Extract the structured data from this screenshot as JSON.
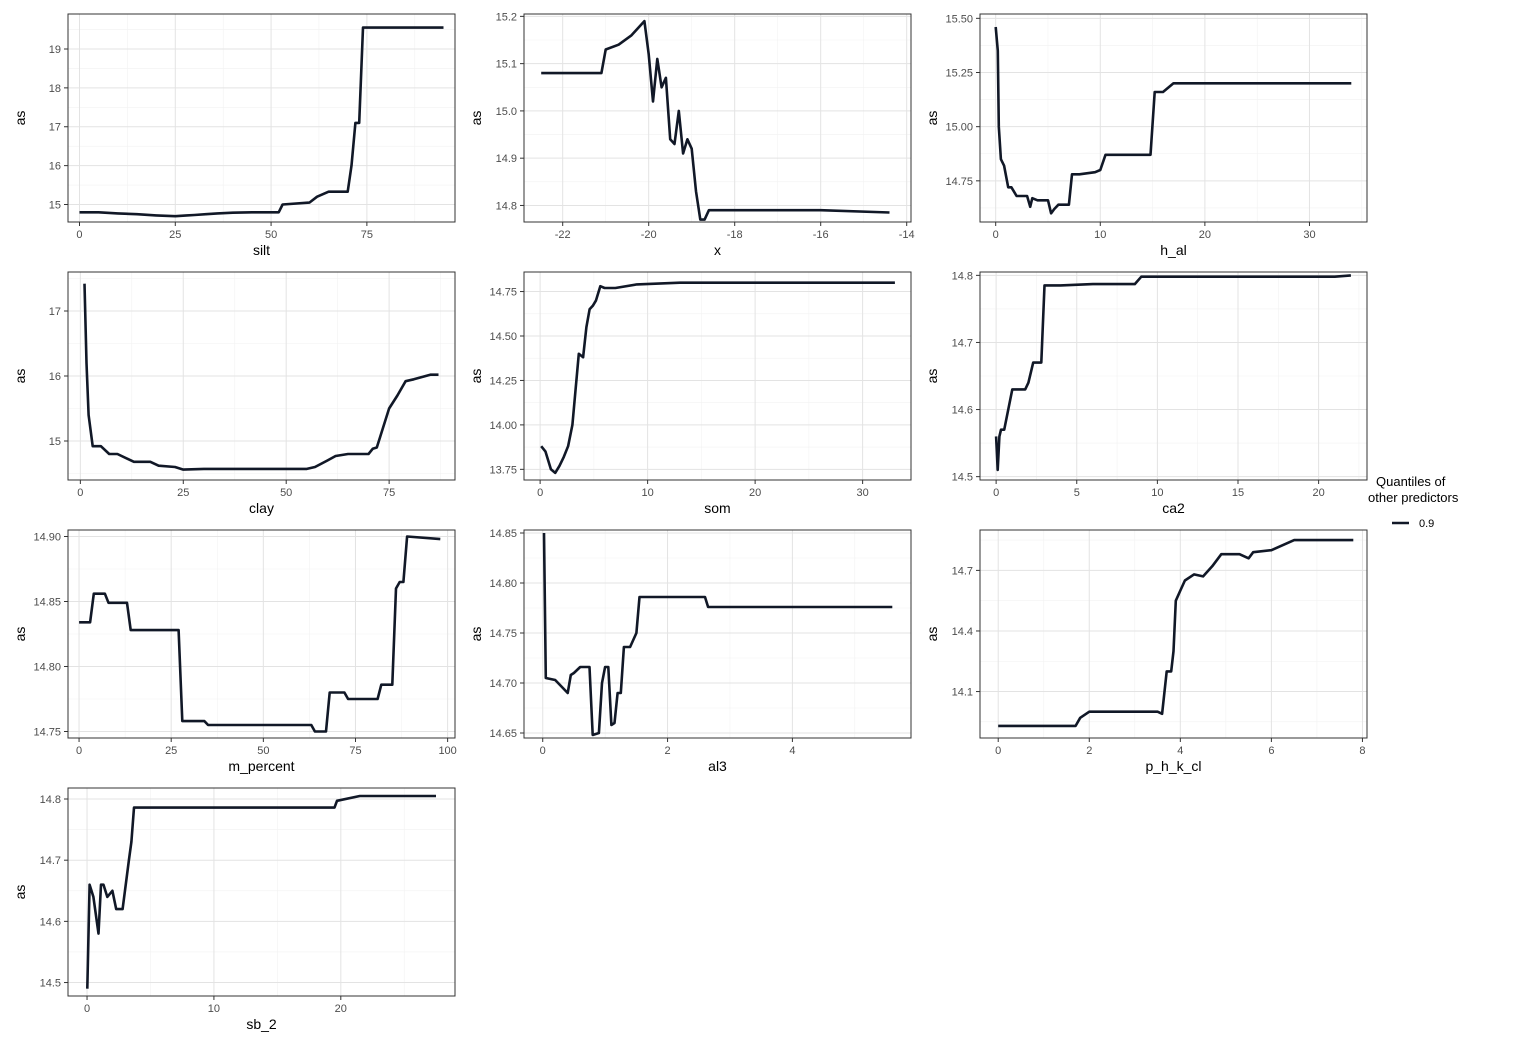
{
  "colors": {
    "line": "#111827",
    "grid_major": "#e3e3e3",
    "grid_minor": "#f2f2f2",
    "panel_border": "#333333"
  },
  "legend": {
    "title_line1": "Quantiles of",
    "title_line2": "other predictors",
    "entries": [
      "0.9"
    ]
  },
  "chart_data": [
    {
      "type": "line",
      "xlabel": "silt",
      "ylabel": "as",
      "xlim": [
        -3,
        98
      ],
      "ylim": [
        14.55,
        19.9
      ],
      "xticks": [
        0,
        25,
        50,
        75
      ],
      "xtick_labels": [
        "0",
        "25",
        "50",
        "75"
      ],
      "yticks": [
        15,
        16,
        17,
        18,
        19
      ],
      "ytick_labels": [
        "15",
        "16",
        "17",
        "18",
        "19"
      ],
      "grid": true,
      "series": [
        {
          "name": "0.9",
          "x": [
            0,
            5,
            10,
            15,
            20,
            25,
            28,
            30,
            33,
            36,
            40,
            45,
            50,
            52,
            53,
            60,
            62,
            65,
            70,
            71,
            72,
            73,
            74,
            80,
            95
          ],
          "y": [
            14.8,
            14.8,
            14.77,
            14.75,
            14.72,
            14.7,
            14.72,
            14.73,
            14.75,
            14.77,
            14.79,
            14.8,
            14.8,
            14.8,
            15.0,
            15.05,
            15.2,
            15.33,
            15.33,
            16.0,
            17.1,
            17.1,
            19.55,
            19.55,
            19.55
          ]
        }
      ]
    },
    {
      "type": "line",
      "xlabel": "x",
      "ylabel": "as",
      "xlim": [
        -22.9,
        -13.9
      ],
      "ylim": [
        14.765,
        15.205
      ],
      "xticks": [
        -22,
        -20,
        -18,
        -16,
        -14
      ],
      "xtick_labels": [
        "-22",
        "-20",
        "-18",
        "-16",
        "-14"
      ],
      "yticks": [
        14.8,
        14.9,
        15.0,
        15.1,
        15.2
      ],
      "ytick_labels": [
        "14.8",
        "14.9",
        "15.0",
        "15.1",
        "15.2"
      ],
      "grid": true,
      "series": [
        {
          "name": "0.9",
          "x": [
            -22.5,
            -21.1,
            -21.0,
            -20.7,
            -20.4,
            -20.1,
            -20.0,
            -19.9,
            -19.8,
            -19.7,
            -19.6,
            -19.5,
            -19.4,
            -19.3,
            -19.2,
            -19.1,
            -19.0,
            -18.9,
            -18.8,
            -18.7,
            -18.6,
            -18.4,
            -17.6,
            -17.2,
            -16.0,
            -14.4
          ],
          "y": [
            15.08,
            15.08,
            15.13,
            15.14,
            15.16,
            15.19,
            15.12,
            15.02,
            15.11,
            15.05,
            15.07,
            14.94,
            14.93,
            15.0,
            14.91,
            14.94,
            14.92,
            14.83,
            14.77,
            14.77,
            14.79,
            14.79,
            14.79,
            14.79,
            14.79,
            14.785
          ]
        }
      ]
    },
    {
      "type": "line",
      "xlabel": "h_al",
      "ylabel": "as",
      "xlim": [
        -1.5,
        35.5
      ],
      "ylim": [
        14.56,
        15.52
      ],
      "xticks": [
        0,
        10,
        20,
        30
      ],
      "xtick_labels": [
        "0",
        "10",
        "20",
        "30"
      ],
      "yticks": [
        14.75,
        15.0,
        15.25,
        15.5
      ],
      "ytick_labels": [
        "14.75",
        "15.00",
        "15.25",
        "15.50"
      ],
      "grid": true,
      "series": [
        {
          "name": "0.9",
          "x": [
            0,
            0.2,
            0.3,
            0.5,
            0.8,
            1.2,
            1.5,
            2.0,
            3.0,
            3.3,
            3.5,
            4.0,
            5.0,
            5.3,
            5.6,
            6.0,
            6.5,
            7.0,
            7.3,
            8.0,
            9.5,
            10.0,
            10.5,
            14.0,
            14.8,
            15.2,
            16.0,
            17.0,
            34.0
          ],
          "y": [
            15.46,
            15.35,
            15.0,
            14.85,
            14.82,
            14.72,
            14.72,
            14.68,
            14.68,
            14.63,
            14.67,
            14.66,
            14.66,
            14.6,
            14.62,
            14.64,
            14.64,
            14.64,
            14.78,
            14.78,
            14.79,
            14.8,
            14.87,
            14.87,
            14.87,
            15.16,
            15.16,
            15.2,
            15.2
          ]
        }
      ]
    },
    {
      "type": "line",
      "xlabel": "clay",
      "ylabel": "as",
      "xlim": [
        -3,
        91
      ],
      "ylim": [
        14.4,
        17.6
      ],
      "xticks": [
        0,
        25,
        50,
        75
      ],
      "xtick_labels": [
        "0",
        "25",
        "50",
        "75"
      ],
      "yticks": [
        15,
        16,
        17
      ],
      "ytick_labels": [
        "15",
        "16",
        "17"
      ],
      "grid": true,
      "series": [
        {
          "name": "0.9",
          "x": [
            1,
            1.5,
            2,
            3,
            5,
            7,
            9,
            13,
            17,
            19,
            23,
            25,
            30,
            40,
            55,
            57,
            60,
            62,
            65,
            70,
            71,
            72,
            73,
            74,
            75,
            77,
            79,
            81,
            85,
            87
          ],
          "y": [
            17.42,
            16.2,
            15.4,
            14.92,
            14.92,
            14.8,
            14.8,
            14.68,
            14.68,
            14.62,
            14.6,
            14.56,
            14.57,
            14.57,
            14.57,
            14.6,
            14.7,
            14.77,
            14.8,
            14.8,
            14.88,
            14.9,
            15.1,
            15.3,
            15.5,
            15.7,
            15.92,
            15.95,
            16.02,
            16.02
          ]
        }
      ]
    },
    {
      "type": "line",
      "xlabel": "som",
      "ylabel": "as",
      "xlim": [
        -1.5,
        34.5
      ],
      "ylim": [
        13.69,
        14.86
      ],
      "xticks": [
        0,
        10,
        20,
        30
      ],
      "xtick_labels": [
        "0",
        "10",
        "20",
        "30"
      ],
      "yticks": [
        13.75,
        14.0,
        14.25,
        14.5,
        14.75
      ],
      "ytick_labels": [
        "13.75",
        "14.00",
        "14.25",
        "14.50",
        "14.75"
      ],
      "grid": true,
      "series": [
        {
          "name": "0.9",
          "x": [
            0.1,
            0.5,
            1.0,
            1.4,
            1.8,
            2.2,
            2.6,
            3.0,
            3.3,
            3.6,
            4.0,
            4.3,
            4.6,
            4.9,
            5.2,
            5.6,
            6.0,
            7.0,
            9.0,
            13.0,
            33.0
          ],
          "y": [
            13.88,
            13.85,
            13.75,
            13.73,
            13.77,
            13.82,
            13.88,
            14.0,
            14.2,
            14.4,
            14.38,
            14.55,
            14.65,
            14.67,
            14.7,
            14.78,
            14.77,
            14.77,
            14.79,
            14.8,
            14.8
          ]
        }
      ]
    },
    {
      "type": "line",
      "xlabel": "ca2",
      "ylabel": "as",
      "xlim": [
        -1,
        23
      ],
      "ylim": [
        14.495,
        14.805
      ],
      "xticks": [
        0,
        5,
        10,
        15,
        20
      ],
      "xtick_labels": [
        "0",
        "5",
        "10",
        "15",
        "20"
      ],
      "yticks": [
        14.5,
        14.6,
        14.7,
        14.8
      ],
      "ytick_labels": [
        "14.5",
        "14.6",
        "14.7",
        "14.8"
      ],
      "grid": true,
      "series": [
        {
          "name": "0.9",
          "x": [
            0,
            0.1,
            0.2,
            0.3,
            0.5,
            1.0,
            1.3,
            1.8,
            2.0,
            2.3,
            2.8,
            3.0,
            4.0,
            6.0,
            8.6,
            9.0,
            21.0,
            22.0
          ],
          "y": [
            14.56,
            14.51,
            14.56,
            14.57,
            14.57,
            14.63,
            14.63,
            14.63,
            14.64,
            14.67,
            14.67,
            14.785,
            14.785,
            14.787,
            14.787,
            14.798,
            14.798,
            14.8
          ]
        }
      ]
    },
    {
      "type": "line",
      "xlabel": "m_percent",
      "ylabel": "as",
      "xlim": [
        -3,
        102
      ],
      "ylim": [
        14.745,
        14.905
      ],
      "xticks": [
        0,
        25,
        50,
        75,
        100
      ],
      "xtick_labels": [
        "0",
        "25",
        "50",
        "75",
        "100"
      ],
      "yticks": [
        14.75,
        14.8,
        14.85,
        14.9
      ],
      "ytick_labels": [
        "14.75",
        "14.80",
        "14.85",
        "14.90"
      ],
      "grid": true,
      "series": [
        {
          "name": "0.9",
          "x": [
            0,
            3,
            4,
            7,
            8,
            13,
            14,
            27,
            28,
            34,
            35,
            50,
            63,
            64,
            67,
            68,
            72,
            73,
            81,
            82,
            85,
            86,
            87,
            88,
            89,
            98
          ],
          "y": [
            14.834,
            14.834,
            14.856,
            14.856,
            14.849,
            14.849,
            14.828,
            14.828,
            14.758,
            14.758,
            14.755,
            14.755,
            14.755,
            14.75,
            14.75,
            14.78,
            14.78,
            14.775,
            14.775,
            14.786,
            14.786,
            14.86,
            14.865,
            14.865,
            14.9,
            14.898
          ]
        }
      ]
    },
    {
      "type": "line",
      "xlabel": "al3",
      "ylabel": "as",
      "xlim": [
        -0.3,
        5.9
      ],
      "ylim": [
        14.645,
        14.853
      ],
      "xticks": [
        0,
        2,
        4
      ],
      "xtick_labels": [
        "0",
        "2",
        "4"
      ],
      "yticks": [
        14.65,
        14.7,
        14.75,
        14.8,
        14.85
      ],
      "ytick_labels": [
        "14.65",
        "14.70",
        "14.75",
        "14.80",
        "14.85"
      ],
      "grid": true,
      "series": [
        {
          "name": "0.9",
          "x": [
            0.02,
            0.05,
            0.2,
            0.4,
            0.45,
            0.5,
            0.6,
            0.75,
            0.8,
            0.9,
            0.95,
            1.0,
            1.05,
            1.1,
            1.15,
            1.2,
            1.25,
            1.3,
            1.4,
            1.5,
            1.55,
            1.6,
            2.6,
            2.65,
            5.6
          ],
          "y": [
            14.85,
            14.705,
            14.703,
            14.69,
            14.708,
            14.71,
            14.716,
            14.716,
            14.648,
            14.65,
            14.7,
            14.716,
            14.716,
            14.658,
            14.66,
            14.69,
            14.69,
            14.736,
            14.736,
            14.75,
            14.786,
            14.786,
            14.786,
            14.776,
            14.776
          ]
        }
      ]
    },
    {
      "type": "line",
      "xlabel": "p_h_k_cl",
      "ylabel": "as",
      "xlim": [
        -0.4,
        8.1
      ],
      "ylim": [
        13.87,
        14.9
      ],
      "xticks": [
        0,
        2,
        4,
        6,
        8
      ],
      "xtick_labels": [
        "0",
        "2",
        "4",
        "6",
        "8"
      ],
      "yticks": [
        14.1,
        14.4,
        14.7
      ],
      "ytick_labels": [
        "14.1",
        "14.4",
        "14.7"
      ],
      "grid": true,
      "series": [
        {
          "name": "0.9",
          "x": [
            0,
            1.7,
            1.8,
            2.0,
            3.5,
            3.6,
            3.7,
            3.8,
            3.85,
            3.9,
            4.0,
            4.1,
            4.3,
            4.5,
            4.7,
            4.9,
            5.3,
            5.5,
            5.6,
            6.0,
            6.5,
            7.8
          ],
          "y": [
            13.93,
            13.93,
            13.97,
            14.0,
            14.0,
            13.99,
            14.2,
            14.2,
            14.3,
            14.55,
            14.6,
            14.65,
            14.68,
            14.67,
            14.72,
            14.78,
            14.78,
            14.76,
            14.79,
            14.8,
            14.85,
            14.85
          ]
        }
      ]
    },
    {
      "type": "line",
      "xlabel": "sb_2",
      "ylabel": "as",
      "xlim": [
        -1.5,
        29
      ],
      "ylim": [
        14.478,
        14.818
      ],
      "xticks": [
        0,
        10,
        20
      ],
      "xtick_labels": [
        "0",
        "10",
        "20"
      ],
      "yticks": [
        14.5,
        14.6,
        14.7,
        14.8
      ],
      "ytick_labels": [
        "14.5",
        "14.6",
        "14.7",
        "14.8"
      ],
      "grid": true,
      "series": [
        {
          "name": "0.9",
          "x": [
            0.02,
            0.2,
            0.5,
            0.9,
            1.1,
            1.3,
            1.6,
            2.0,
            2.3,
            2.6,
            2.8,
            3.3,
            3.5,
            3.7,
            4.0,
            8.0,
            19.5,
            19.7,
            21.5,
            27.5
          ],
          "y": [
            14.49,
            14.66,
            14.64,
            14.58,
            14.66,
            14.66,
            14.64,
            14.65,
            14.62,
            14.62,
            14.62,
            14.7,
            14.73,
            14.786,
            14.786,
            14.786,
            14.786,
            14.797,
            14.805,
            14.805
          ]
        }
      ]
    }
  ]
}
